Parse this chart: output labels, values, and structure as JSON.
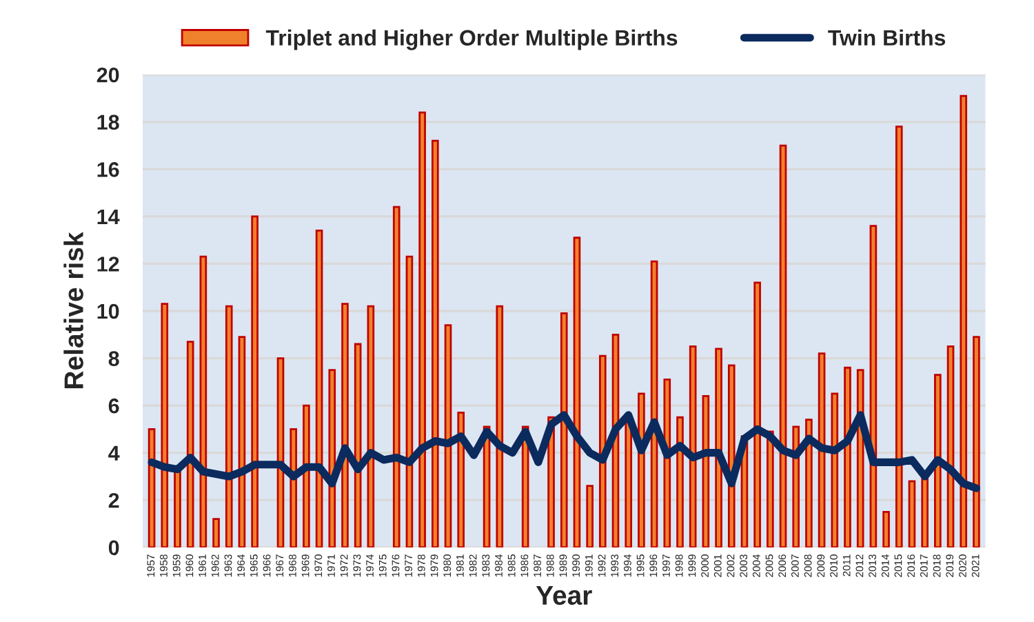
{
  "chart_data": {
    "type": "bar",
    "xlabel": "Year",
    "ylabel": "Relative risk",
    "categories": [
      "1957",
      "1958",
      "1959",
      "1960",
      "1961",
      "1962",
      "1963",
      "1964",
      "1965",
      "1966",
      "1967",
      "1968",
      "1969",
      "1970",
      "1971",
      "1972",
      "1973",
      "1974",
      "1975",
      "1976",
      "1977",
      "1978",
      "1979",
      "1980",
      "1981",
      "1982",
      "1983",
      "1984",
      "1985",
      "1986",
      "1987",
      "1988",
      "1989",
      "1990",
      "1991",
      "1992",
      "1993",
      "1994",
      "1995",
      "1996",
      "1997",
      "1998",
      "1999",
      "2000",
      "2001",
      "2002",
      "2003",
      "2004",
      "2005",
      "2006",
      "2007",
      "2008",
      "2009",
      "2010",
      "2011",
      "2012",
      "2013",
      "2014",
      "2015",
      "2016",
      "2017",
      "2018",
      "2019",
      "2020",
      "2021"
    ],
    "series": [
      {
        "name": "Triplet and Higher Order Multiple Births",
        "color": "#f0812c",
        "values": [
          5.0,
          10.3,
          3.3,
          8.7,
          12.3,
          1.2,
          10.2,
          8.9,
          14.0,
          null,
          8.0,
          5.0,
          6.0,
          13.4,
          7.5,
          10.3,
          8.6,
          10.2,
          null,
          14.4,
          12.3,
          18.4,
          17.2,
          9.4,
          5.7,
          null,
          5.1,
          10.2,
          null,
          5.1,
          null,
          5.5,
          9.9,
          13.1,
          2.6,
          8.1,
          9.0,
          5.3,
          6.5,
          12.1,
          7.1,
          5.5,
          8.5,
          6.4,
          8.4,
          7.7,
          4.7,
          11.2,
          4.9,
          17.0,
          5.1,
          5.4,
          8.2,
          6.5,
          7.6,
          7.5,
          13.6,
          1.5,
          17.8,
          2.8,
          2.9,
          7.3,
          8.5,
          19.1,
          8.9
        ]
      },
      {
        "name": "Twin Births",
        "type": "line",
        "color": "#0b2a5e",
        "values": [
          3.6,
          3.4,
          3.3,
          3.8,
          3.2,
          3.1,
          3.0,
          3.2,
          3.5,
          3.5,
          3.5,
          3.0,
          3.4,
          3.4,
          2.7,
          4.2,
          3.3,
          4.0,
          3.7,
          3.8,
          3.6,
          4.2,
          4.5,
          4.4,
          4.7,
          3.9,
          4.9,
          4.3,
          4.0,
          4.9,
          3.6,
          5.2,
          5.6,
          4.7,
          4.0,
          3.7,
          5.0,
          5.6,
          4.1,
          5.3,
          3.9,
          4.3,
          3.8,
          4.0,
          4.0,
          2.7,
          4.6,
          5.0,
          4.7,
          4.1,
          3.9,
          4.6,
          4.2,
          4.1,
          4.5,
          5.6,
          3.6,
          3.6,
          3.6,
          3.7,
          3.0,
          3.7,
          3.3,
          2.7,
          2.5
        ]
      }
    ],
    "ylim": [
      0,
      20
    ],
    "yticks": [
      0,
      2,
      4,
      6,
      8,
      10,
      12,
      14,
      16,
      18,
      20
    ],
    "grid": "y",
    "legend": "top"
  }
}
